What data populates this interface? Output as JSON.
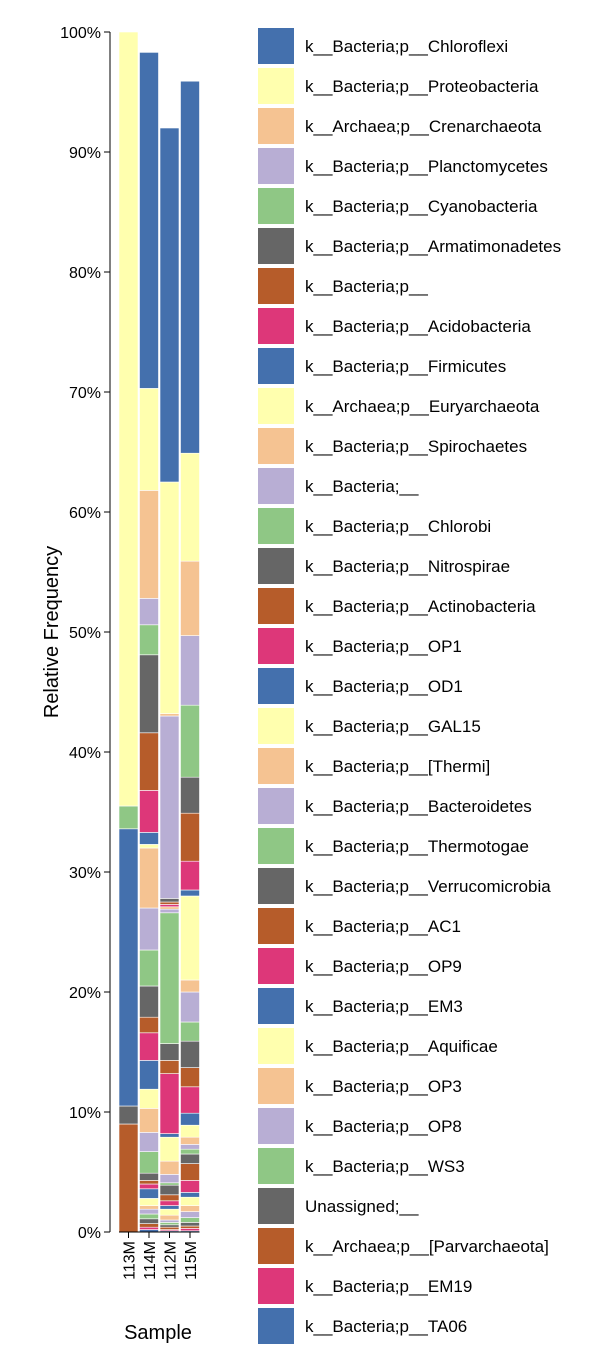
{
  "chart_data": {
    "type": "bar",
    "stacked": true,
    "xlabel": "Sample",
    "ylabel": "Relative Frequency",
    "ylim": [
      0,
      1
    ],
    "y_ticks": [
      "0%",
      "10%",
      "20%",
      "30%",
      "40%",
      "50%",
      "60%",
      "70%",
      "80%",
      "90%",
      "100%"
    ],
    "categories": [
      "113M",
      "114M",
      "112M",
      "115M"
    ],
    "stack_order": "bottom-to-top: last series at the bottom, first series at the top",
    "legend_position": "right",
    "series": [
      {
        "name": "k__Bacteria;p__Chloroflexi",
        "color": "#4470ad",
        "values": [
          0.0,
          0.28,
          0.295,
          0.31
        ]
      },
      {
        "name": "k__Bacteria;p__Proteobacteria",
        "color": "#ffffae",
        "values": [
          0.645,
          0.085,
          0.193,
          0.09
        ]
      },
      {
        "name": "k__Archaea;p__Crenarchaeota",
        "color": "#f5c392",
        "values": [
          0.0,
          0.09,
          0.002,
          0.062
        ]
      },
      {
        "name": "k__Bacteria;p__Planctomycetes",
        "color": "#b8aed4",
        "values": [
          0.0,
          0.022,
          0.152,
          0.058
        ]
      },
      {
        "name": "k__Bacteria;p__Cyanobacteria",
        "color": "#8fc785",
        "values": [
          0.019,
          0.025,
          0.0,
          0.06
        ]
      },
      {
        "name": "k__Bacteria;p__Armatimonadetes",
        "color": "#666666",
        "values": [
          0.0,
          0.065,
          0.003,
          0.03
        ]
      },
      {
        "name": "k__Bacteria;p__",
        "color": "#b65c2a",
        "values": [
          0.0,
          0.048,
          0.002,
          0.04
        ]
      },
      {
        "name": "k__Bacteria;p__Acidobacteria",
        "color": "#dd3779",
        "values": [
          0.0,
          0.035,
          0.002,
          0.024
        ]
      },
      {
        "name": "k__Bacteria;p__Firmicutes",
        "color": "#4470ad",
        "values": [
          0.231,
          0.01,
          0.0,
          0.005
        ]
      },
      {
        "name": "k__Archaea;p__Euryarchaeota",
        "color": "#ffffae",
        "values": [
          0.0,
          0.003,
          0.0,
          0.07
        ]
      },
      {
        "name": "k__Bacteria;p__Spirochaetes",
        "color": "#f5c392",
        "values": [
          0.0,
          0.05,
          0.002,
          0.01
        ]
      },
      {
        "name": "k__Bacteria;__",
        "color": "#b8aed4",
        "values": [
          0.0,
          0.035,
          0.003,
          0.025
        ]
      },
      {
        "name": "k__Bacteria;p__Chlorobi",
        "color": "#8fc785",
        "values": [
          0.0,
          0.03,
          0.109,
          0.016
        ]
      },
      {
        "name": "k__Bacteria;p__Nitrospirae",
        "color": "#666666",
        "values": [
          0.0,
          0.026,
          0.014,
          0.022
        ]
      },
      {
        "name": "k__Bacteria;p__Actinobacteria",
        "color": "#b65c2a",
        "values": [
          0.0,
          0.013,
          0.011,
          0.016
        ]
      },
      {
        "name": "k__Bacteria;p__OP1",
        "color": "#dd3779",
        "values": [
          0.0,
          0.023,
          0.05,
          0.022
        ]
      },
      {
        "name": "k__Bacteria;p__OD1",
        "color": "#4470ad",
        "values": [
          0.0,
          0.024,
          0.003,
          0.01
        ]
      },
      {
        "name": "k__Bacteria;p__GAL15",
        "color": "#ffffae",
        "values": [
          0.0,
          0.016,
          0.02,
          0.01
        ]
      },
      {
        "name": "k__Bacteria;p__[Thermi]",
        "color": "#f5c392",
        "values": [
          0.0,
          0.02,
          0.011,
          0.006
        ]
      },
      {
        "name": "k__Bacteria;p__Bacteroidetes",
        "color": "#b8aed4",
        "values": [
          0.0,
          0.016,
          0.007,
          0.004
        ]
      },
      {
        "name": "k__Bacteria;p__Thermotogae",
        "color": "#8fc785",
        "values": [
          0.0,
          0.018,
          0.002,
          0.004
        ]
      },
      {
        "name": "k__Bacteria;p__Verrucomicrobia",
        "color": "#666666",
        "values": [
          0.0,
          0.006,
          0.008,
          0.008
        ]
      },
      {
        "name": "k__Bacteria;p__AC1",
        "color": "#b65c2a",
        "values": [
          0.0,
          0.003,
          0.005,
          0.014
        ]
      },
      {
        "name": "k__Bacteria;p__OP9",
        "color": "#dd3779",
        "values": [
          0.0,
          0.004,
          0.004,
          0.01
        ]
      },
      {
        "name": "k__Bacteria;p__EM3",
        "color": "#4470ad",
        "values": [
          0.0,
          0.008,
          0.003,
          0.004
        ]
      },
      {
        "name": "k__Bacteria;p__Aquificae",
        "color": "#ffffae",
        "values": [
          0.0,
          0.006,
          0.005,
          0.007
        ]
      },
      {
        "name": "k__Bacteria;p__OP3",
        "color": "#f5c392",
        "values": [
          0.0,
          0.003,
          0.004,
          0.005
        ]
      },
      {
        "name": "k__Bacteria;p__OP8",
        "color": "#b8aed4",
        "values": [
          0.0,
          0.004,
          0.002,
          0.005
        ]
      },
      {
        "name": "k__Bacteria;p__WS3",
        "color": "#8fc785",
        "values": [
          0.0,
          0.004,
          0.002,
          0.004
        ]
      },
      {
        "name": "Unassigned;__",
        "color": "#666666",
        "values": [
          0.015,
          0.004,
          0.002,
          0.003
        ]
      },
      {
        "name": "k__Archaea;p__[Parvarchaeota]",
        "color": "#b65c2a",
        "values": [
          0.09,
          0.003,
          0.002,
          0.002
        ]
      },
      {
        "name": "k__Bacteria;p__EM19",
        "color": "#dd3779",
        "values": [
          0.0,
          0.002,
          0.001,
          0.002
        ]
      },
      {
        "name": "k__Bacteria;p__TA06",
        "color": "#4470ad",
        "values": [
          0.0,
          0.002,
          0.001,
          0.001
        ]
      }
    ]
  }
}
